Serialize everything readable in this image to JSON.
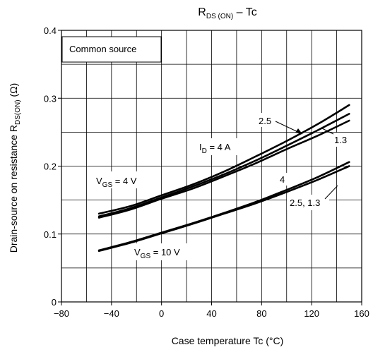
{
  "chart_data": {
    "type": "line",
    "title": {
      "main": "R",
      "sub": "DS (ON)",
      "rest": " – Tc"
    },
    "xlabel": "Case temperature   Tc   (°C)",
    "ylabel": {
      "main": "Drain-source on resistance   R",
      "sub": "DS(ON)",
      "rest": "   (Ω)"
    },
    "xlim": [
      -80,
      160
    ],
    "ylim": [
      0,
      0.4
    ],
    "x_ticks": [
      -80,
      -40,
      0,
      40,
      80,
      120,
      160
    ],
    "x_tick_labels": [
      "−80",
      "−40",
      "0",
      "40",
      "80",
      "120",
      "160"
    ],
    "y_ticks": [
      0,
      0.1,
      0.2,
      0.3,
      0.4
    ],
    "y_tick_labels": [
      "0",
      "0.1",
      "0.2",
      "0.3",
      "0.4"
    ],
    "grid": true,
    "series": [
      {
        "x": [
          -50,
          -25,
          0,
          25,
          50,
          75,
          100,
          125,
          150
        ],
        "y": [
          0.13,
          0.141,
          0.157,
          0.173,
          0.192,
          0.214,
          0.237,
          0.262,
          0.29
        ]
      },
      {
        "x": [
          -50,
          -25,
          0,
          25,
          50,
          75,
          100,
          125,
          150
        ],
        "y": [
          0.126,
          0.138,
          0.154,
          0.17,
          0.188,
          0.208,
          0.23,
          0.253,
          0.277
        ]
      },
      {
        "x": [
          -50,
          -25,
          0,
          25,
          50,
          75,
          100,
          125,
          150
        ],
        "y": [
          0.124,
          0.136,
          0.152,
          0.167,
          0.185,
          0.204,
          0.225,
          0.245,
          0.267
        ]
      },
      {
        "x": [
          -50,
          -25,
          0,
          25,
          50,
          75,
          100,
          125,
          150
        ],
        "y": [
          0.076,
          0.088,
          0.102,
          0.116,
          0.131,
          0.147,
          0.165,
          0.184,
          0.206
        ]
      },
      {
        "x": [
          -50,
          -25,
          0,
          25,
          50,
          75,
          100,
          125,
          150
        ],
        "y": [
          0.075,
          0.087,
          0.101,
          0.115,
          0.13,
          0.145,
          0.162,
          0.18,
          0.2
        ]
      }
    ],
    "annotations": {
      "common_source": "Common source",
      "vgs4": {
        "main": "V",
        "sub": "GS",
        "rest": " = 4 V"
      },
      "vgs10": {
        "main": "V",
        "sub": "GS",
        "rest": " = 10 V"
      },
      "id": {
        "main": "I",
        "sub": "D",
        "rest": " = 4 A"
      },
      "label_2_5": "2.5",
      "label_1_3": "1.3",
      "label_4": "4",
      "label_2_5_1_3": "2.5, 1.3"
    }
  }
}
